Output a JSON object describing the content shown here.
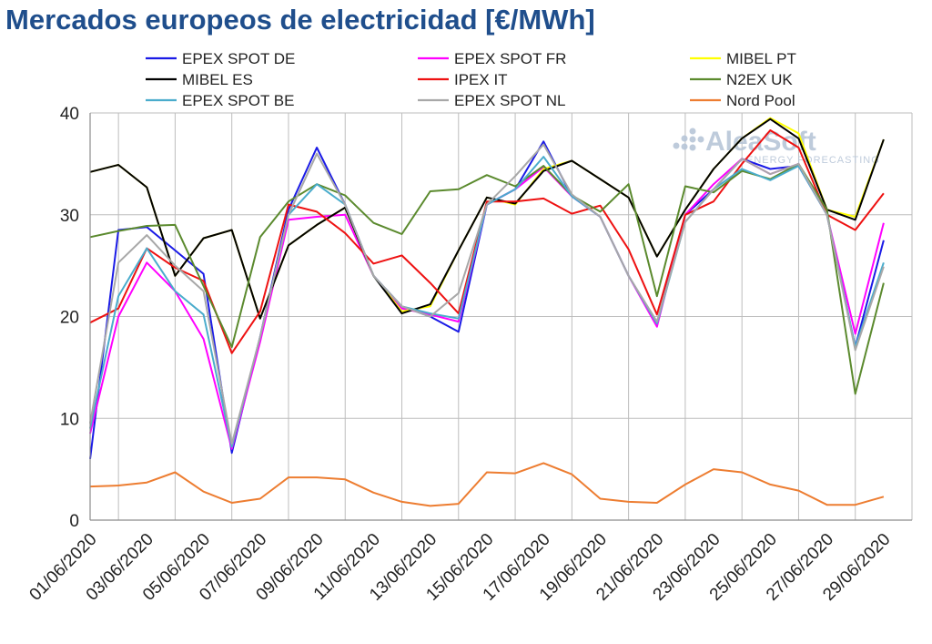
{
  "title": "Mercados europeos de electricidad [€/MWh]",
  "watermark": {
    "brand": "AleaSoft",
    "tagline": "ENERGY FORECASTING"
  },
  "chart_data": {
    "type": "line",
    "ylim": [
      0,
      40
    ],
    "yticks": [
      0,
      10,
      20,
      30,
      40
    ],
    "grid": true,
    "legend_position": "top",
    "x": [
      "01/06/2020",
      "02/06/2020",
      "03/06/2020",
      "04/06/2020",
      "05/06/2020",
      "06/06/2020",
      "07/06/2020",
      "08/06/2020",
      "09/06/2020",
      "10/06/2020",
      "11/06/2020",
      "12/06/2020",
      "13/06/2020",
      "14/06/2020",
      "15/06/2020",
      "16/06/2020",
      "17/06/2020",
      "18/06/2020",
      "19/06/2020",
      "20/06/2020",
      "21/06/2020",
      "22/06/2020",
      "23/06/2020",
      "24/06/2020",
      "25/06/2020",
      "26/06/2020",
      "27/06/2020",
      "28/06/2020",
      "29/06/2020",
      "30/06/2020"
    ],
    "xtick_labels": [
      "01/06/2020",
      "03/06/2020",
      "05/06/2020",
      "07/06/2020",
      "09/06/2020",
      "11/06/2020",
      "13/06/2020",
      "15/06/2020",
      "17/06/2020",
      "19/06/2020",
      "21/06/2020",
      "23/06/2020",
      "25/06/2020",
      "27/06/2020",
      "29/06/2020"
    ],
    "series": [
      {
        "name": "EPEX SPOT DE",
        "color": "#1a1ae6",
        "values": [
          6.0,
          28.5,
          28.8,
          26.5,
          24.2,
          6.6,
          18.0,
          30.5,
          36.6,
          31.0,
          24.0,
          21.0,
          20.0,
          18.5,
          31.0,
          32.5,
          37.2,
          31.8,
          29.8,
          24.0,
          19.3,
          30.0,
          32.5,
          35.5,
          34.5,
          34.8,
          30.0,
          17.0,
          27.5,
          null
        ]
      },
      {
        "name": "EPEX SPOT FR",
        "color": "#ff00ff",
        "values": [
          8.5,
          20.0,
          25.3,
          22.5,
          17.8,
          7.0,
          17.5,
          29.5,
          29.8,
          30.0,
          24.0,
          20.8,
          20.2,
          19.5,
          31.0,
          32.5,
          34.7,
          31.8,
          29.8,
          24.0,
          19.0,
          30.0,
          33.0,
          35.5,
          34.0,
          35.0,
          30.0,
          18.3,
          29.2,
          null
        ]
      },
      {
        "name": "MIBEL PT",
        "color": "#ffff00",
        "values": [
          34.2,
          34.9,
          32.7,
          24.0,
          27.7,
          28.5,
          19.8,
          27.0,
          29.0,
          30.7,
          24.0,
          20.5,
          21.0,
          26.5,
          31.7,
          31.0,
          34.5,
          35.3,
          33.5,
          31.7,
          25.9,
          30.5,
          34.5,
          37.5,
          39.5,
          38.0,
          30.5,
          29.8,
          37.4,
          null
        ]
      },
      {
        "name": "MIBEL ES",
        "color": "#000000",
        "values": [
          34.2,
          34.9,
          32.7,
          24.0,
          27.7,
          28.5,
          19.8,
          27.0,
          29.0,
          30.7,
          24.0,
          20.3,
          21.2,
          26.5,
          31.7,
          31.1,
          34.3,
          35.3,
          33.5,
          31.7,
          25.9,
          30.5,
          34.5,
          37.5,
          39.4,
          37.5,
          30.5,
          29.5,
          37.4,
          null
        ]
      },
      {
        "name": "IPEX IT",
        "color": "#ee1111",
        "values": [
          19.4,
          20.8,
          26.7,
          24.8,
          23.5,
          16.4,
          20.5,
          31.0,
          30.3,
          28.2,
          25.2,
          26.0,
          23.3,
          20.3,
          31.3,
          31.3,
          31.6,
          30.1,
          30.9,
          26.6,
          20.2,
          30.0,
          31.3,
          35.0,
          38.3,
          36.6,
          30.0,
          28.5,
          32.1,
          null
        ]
      },
      {
        "name": "N2EX UK",
        "color": "#5b8a2e",
        "values": [
          27.8,
          28.4,
          28.9,
          29.0,
          23.0,
          17.0,
          27.8,
          31.3,
          33.0,
          31.9,
          29.2,
          28.1,
          32.3,
          32.5,
          33.9,
          32.8,
          34.8,
          31.9,
          30.3,
          33.0,
          22.0,
          32.8,
          32.2,
          34.3,
          33.5,
          35.0,
          30.5,
          12.4,
          23.3,
          null
        ]
      },
      {
        "name": "EPEX SPOT BE",
        "color": "#4aaccc",
        "values": [
          9.0,
          22.0,
          26.7,
          22.5,
          20.2,
          7.2,
          18.0,
          30.0,
          33.0,
          31.0,
          24.0,
          21.0,
          20.3,
          19.8,
          31.0,
          32.5,
          35.7,
          31.8,
          29.8,
          24.0,
          19.3,
          29.3,
          32.5,
          34.5,
          33.4,
          34.8,
          30.0,
          17.0,
          25.3,
          null
        ]
      },
      {
        "name": "EPEX SPOT NL",
        "color": "#a8a8a8",
        "values": [
          9.5,
          25.3,
          28.0,
          25.0,
          22.5,
          7.5,
          18.0,
          30.0,
          36.0,
          31.0,
          24.0,
          21.0,
          20.0,
          22.3,
          31.0,
          33.8,
          36.9,
          32.0,
          29.8,
          24.0,
          19.5,
          29.3,
          32.5,
          35.5,
          34.0,
          35.0,
          30.0,
          16.7,
          24.9,
          null
        ]
      },
      {
        "name": "Nord Pool",
        "color": "#ed7d31",
        "values": [
          3.3,
          3.4,
          3.7,
          4.7,
          2.8,
          1.7,
          2.1,
          4.2,
          4.2,
          4.0,
          2.7,
          1.8,
          1.4,
          1.6,
          4.7,
          4.6,
          5.6,
          4.5,
          2.1,
          1.8,
          1.7,
          3.5,
          5.0,
          4.7,
          3.5,
          2.9,
          1.5,
          1.5,
          2.3,
          null
        ]
      }
    ]
  }
}
